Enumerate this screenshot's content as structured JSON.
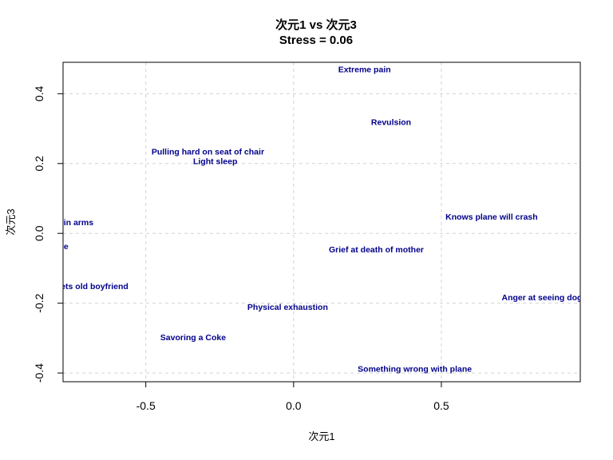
{
  "chart_data": {
    "type": "scatter",
    "title": "次元1 vs 次元3",
    "subtitle": "Stress = 0.06",
    "xlabel": "次元1",
    "ylabel": "次元3",
    "xlim": [
      -0.78,
      0.97
    ],
    "ylim": [
      -0.425,
      0.49
    ],
    "xticks": [
      -0.5,
      0.0,
      0.5
    ],
    "xtick_labels": [
      "-0.5",
      "0.0",
      "0.5"
    ],
    "yticks": [
      -0.4,
      -0.2,
      0.0,
      0.2,
      0.4
    ],
    "ytick_labels": [
      "-0.4",
      "-0.2",
      "0.0",
      "0.2",
      "0.4"
    ],
    "grid": true,
    "label_color": "#00008B",
    "points": [
      {
        "label": "Extreme pain",
        "x": 0.24,
        "y": 0.47
      },
      {
        "label": "Revulsion",
        "x": 0.33,
        "y": 0.32
      },
      {
        "label": "Pulling hard on seat of chair",
        "x": -0.29,
        "y": 0.235
      },
      {
        "label": "Light sleep",
        "x": -0.265,
        "y": 0.207
      },
      {
        "label": "Maternal love-baby in arms",
        "x": -0.86,
        "y": 0.033
      },
      {
        "label": "Knows plane will crash",
        "x": 0.67,
        "y": 0.048
      },
      {
        "label": "Pleasant surprise",
        "x": -0.88,
        "y": -0.036
      },
      {
        "label": "Grief at death of mother",
        "x": 0.28,
        "y": -0.045
      },
      {
        "label": "Unexpectedly meets old boyfriend",
        "x": -0.79,
        "y": -0.15
      },
      {
        "label": "Anger at seeing dog beaten",
        "x": 0.89,
        "y": -0.183
      },
      {
        "label": "Physical exhaustion",
        "x": -0.02,
        "y": -0.21
      },
      {
        "label": "Savoring a Coke",
        "x": -0.34,
        "y": -0.297
      },
      {
        "label": "Something wrong with plane",
        "x": 0.41,
        "y": -0.387
      }
    ]
  }
}
